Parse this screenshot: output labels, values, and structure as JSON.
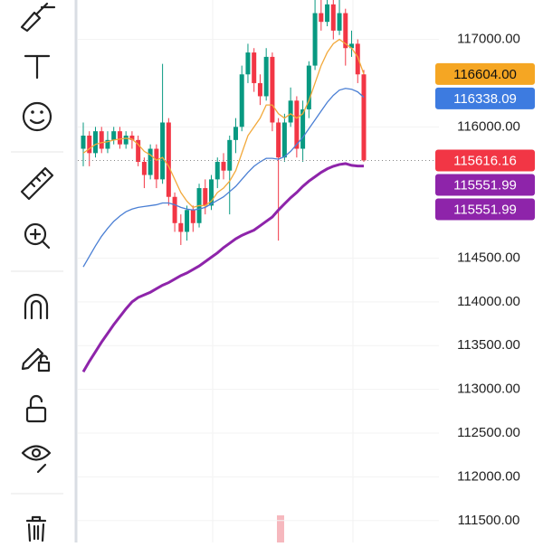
{
  "chart_data": {
    "type": "candlestick",
    "ylim": [
      111250,
      117450
    ],
    "yticks": [
      {
        "value": 117000,
        "label": "117000.00"
      },
      {
        "value": 116000,
        "label": "116000.00"
      },
      {
        "value": 114500,
        "label": "114500.00"
      },
      {
        "value": 114000,
        "label": "114000.00"
      },
      {
        "value": 113500,
        "label": "113500.00"
      },
      {
        "value": 113000,
        "label": "113000.00"
      },
      {
        "value": 112500,
        "label": "112500.00"
      },
      {
        "value": 112000,
        "label": "112000.00"
      },
      {
        "value": 111500,
        "label": "111500.00"
      }
    ],
    "grid": true,
    "up_color": "#089981",
    "down_color": "#f23645",
    "open": [
      115750,
      115900,
      115700,
      115950,
      115750,
      115850,
      115950,
      115800,
      115900,
      115850,
      115600,
      115450,
      115750,
      115400,
      116050,
      115200,
      114900,
      114800,
      115050,
      114900,
      115300,
      115100,
      115400,
      115600,
      115500,
      115850,
      116000,
      116600,
      116850,
      116500,
      116350,
      116800,
      116050,
      115650,
      116050,
      116300,
      115750,
      116200,
      116700,
      117300,
      117200,
      117400,
      117100,
      117300,
      116900,
      116950,
      116600
    ],
    "high": [
      116050,
      115950,
      116000,
      116000,
      115950,
      116000,
      116000,
      115950,
      115950,
      115900,
      115650,
      115800,
      115800,
      116720,
      116100,
      115250,
      115000,
      115100,
      115100,
      115350,
      115400,
      115450,
      115650,
      115700,
      115900,
      116100,
      116700,
      116950,
      116900,
      116600,
      116900,
      116850,
      116100,
      116150,
      116450,
      116350,
      116300,
      116750,
      117450,
      117450,
      117450,
      117450,
      117450,
      117350,
      117100,
      117000,
      116650
    ],
    "low": [
      115550,
      115550,
      115650,
      115700,
      115700,
      115800,
      115750,
      115750,
      115750,
      115550,
      115300,
      115400,
      115300,
      115350,
      115100,
      114800,
      114650,
      114700,
      114800,
      114850,
      115000,
      115050,
      115300,
      115400,
      115000,
      115700,
      115950,
      116500,
      116400,
      116250,
      116300,
      115950,
      114700,
      115600,
      116000,
      115650,
      115600,
      116100,
      116650,
      117100,
      117150,
      117000,
      117050,
      116700,
      116800,
      116500,
      115600
    ],
    "close": [
      115900,
      115700,
      115950,
      115750,
      115850,
      115950,
      115800,
      115900,
      115850,
      115600,
      115450,
      115750,
      115400,
      116050,
      115200,
      114900,
      114800,
      115050,
      114900,
      115300,
      115100,
      115400,
      115600,
      115500,
      115850,
      116000,
      116600,
      116850,
      116500,
      116350,
      116800,
      116050,
      115650,
      116050,
      116300,
      115750,
      116200,
      116700,
      117300,
      117200,
      117400,
      117100,
      117300,
      116900,
      116950,
      116600,
      115616.16
    ],
    "lines": [
      {
        "color": "#f2a93b",
        "values": [
          115700,
          115750,
          115800,
          115820,
          115830,
          115850,
          115860,
          115870,
          115860,
          115800,
          115720,
          115680,
          115620,
          115650,
          115550,
          115400,
          115250,
          115150,
          115080,
          115100,
          115100,
          115150,
          115250,
          115300,
          115380,
          115500,
          115700,
          115900,
          116000,
          116100,
          116250,
          116250,
          116150,
          116100,
          116150,
          116100,
          116150,
          116300,
          116500,
          116700,
          116850,
          116950,
          117000,
          116950,
          116900,
          116800,
          116604
        ]
      },
      {
        "color": "#4a7fd4",
        "values": [
          114400,
          114520,
          114640,
          114750,
          114840,
          114920,
          114980,
          115030,
          115060,
          115080,
          115090,
          115100,
          115110,
          115130,
          115130,
          115110,
          115080,
          115060,
          115050,
          115060,
          115080,
          115120,
          115160,
          115200,
          115260,
          115320,
          115400,
          115480,
          115550,
          115600,
          115640,
          115640,
          115630,
          115660,
          115720,
          115800,
          115880,
          115980,
          116080,
          116180,
          116280,
          116360,
          116420,
          116440,
          116430,
          116400,
          116338.09
        ]
      },
      {
        "color": "#8e24aa",
        "values": [
          113200,
          113320,
          113430,
          113540,
          113640,
          113740,
          113830,
          113920,
          114000,
          114050,
          114080,
          114110,
          114150,
          114190,
          114220,
          114260,
          114300,
          114330,
          114370,
          114410,
          114460,
          114510,
          114560,
          114620,
          114670,
          114720,
          114760,
          114790,
          114820,
          114870,
          114920,
          114970,
          115050,
          115120,
          115190,
          115250,
          115320,
          115380,
          115430,
          115480,
          115520,
          115550,
          115570,
          115580,
          115560,
          115552,
          115551.99
        ]
      }
    ],
    "price_labels": [
      {
        "value": 116604,
        "label": "116604.00",
        "color": "#f5a623"
      },
      {
        "value": 116338.09,
        "label": "116338.09",
        "color": "#3d7be0"
      },
      {
        "value": 115616.16,
        "label": "115616.16",
        "color": "#f23645"
      },
      {
        "value": 115551.99,
        "label": "115551.99",
        "color": "#8e24aa"
      },
      {
        "value": 115551.99,
        "label": "115551.99",
        "color": "#8e24aa"
      }
    ]
  }
}
